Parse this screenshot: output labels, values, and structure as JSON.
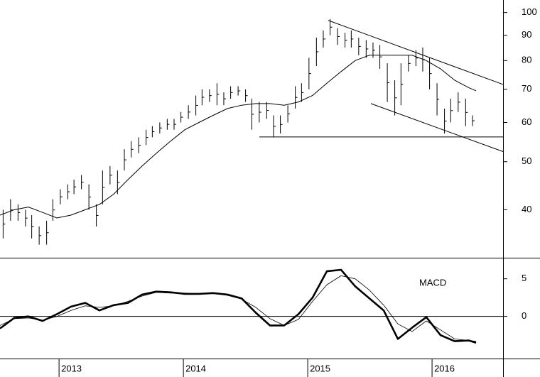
{
  "chart_data": [
    {
      "type": "ohlc",
      "log_scale": true,
      "xlim": [
        2012.525,
        2016.571
      ],
      "ylim": [
        32,
        106
      ],
      "yticks": [
        40,
        50,
        60,
        70,
        80,
        90,
        100
      ],
      "color": "#000000",
      "x": [
        2012.55,
        2012.61,
        2012.67,
        2012.73,
        2012.78,
        2012.84,
        2012.9,
        2012.95,
        2013.01,
        2013.07,
        2013.12,
        2013.18,
        2013.24,
        2013.3,
        2013.35,
        2013.41,
        2013.47,
        2013.525,
        2013.58,
        2013.64,
        2013.7,
        2013.75,
        2013.81,
        2013.87,
        2013.925,
        2013.98,
        2014.04,
        2014.1,
        2014.15,
        2014.21,
        2014.27,
        2014.325,
        2014.38,
        2014.44,
        2014.5,
        2014.55,
        2014.61,
        2014.67,
        2014.725,
        2014.78,
        2014.84,
        2014.9,
        2014.95,
        2015.01,
        2015.07,
        2015.125,
        2015.18,
        2015.24,
        2015.3,
        2015.35,
        2015.41,
        2015.47,
        2015.525,
        2015.58,
        2015.64,
        2015.7,
        2015.75,
        2015.81,
        2015.87,
        2015.925,
        2015.98,
        2016.04,
        2016.1,
        2016.15,
        2016.21,
        2016.27,
        2016.325
      ],
      "high": [
        40,
        42,
        41,
        40,
        39,
        37,
        38,
        42,
        44,
        45,
        46,
        47,
        45,
        41,
        48,
        49,
        48,
        53,
        55,
        56,
        58,
        59,
        60,
        61,
        61,
        63,
        65,
        68,
        70,
        70,
        72,
        69,
        71,
        71,
        70,
        67,
        66,
        66,
        62,
        62,
        65,
        71,
        72,
        81,
        89,
        92,
        97,
        93,
        91,
        92,
        89,
        88,
        87,
        86,
        79,
        73,
        79,
        82,
        84,
        85,
        81,
        72,
        64,
        67,
        69,
        67,
        62
      ],
      "low": [
        35,
        38,
        38,
        37,
        35,
        34,
        34,
        38,
        41,
        42,
        43,
        44,
        40,
        37,
        41,
        45,
        43,
        48,
        51,
        52,
        54,
        56,
        57,
        58,
        58,
        60,
        61,
        62,
        65,
        66,
        65,
        65,
        67,
        68,
        66,
        58,
        60,
        61,
        56,
        57,
        60,
        64,
        66,
        70,
        78,
        85,
        90,
        86,
        85,
        85,
        82,
        81,
        81,
        77,
        66,
        62,
        65,
        76,
        78,
        76,
        70,
        62,
        57,
        60,
        63,
        59,
        59
      ],
      "moving_average": {
        "color": "#000000",
        "x": [
          2012.525,
          2012.64,
          2012.754,
          2012.868,
          2012.982,
          2013.096,
          2013.211,
          2013.325,
          2013.439,
          2013.554,
          2013.668,
          2013.782,
          2013.896,
          2014.011,
          2014.125,
          2014.239,
          2014.354,
          2014.468,
          2014.582,
          2014.696,
          2014.811,
          2014.925,
          2015.039,
          2015.154,
          2015.268,
          2015.382,
          2015.496,
          2015.611,
          2015.725,
          2015.839,
          2015.954,
          2016.068,
          2016.182,
          2016.296,
          2016.354
        ],
        "values": [
          39,
          40,
          40.5,
          39.5,
          38.5,
          39,
          40,
          41,
          43,
          46,
          49,
          52,
          55,
          58,
          60,
          62,
          64,
          65,
          65.5,
          65.5,
          65,
          66,
          68,
          72,
          76,
          80,
          82,
          82,
          82,
          82,
          80,
          77,
          73,
          70.5,
          69.5
        ]
      },
      "trendlines": [
        {
          "x": [
            2015.165,
            2016.571
          ],
          "y": [
            96.4,
            71.6
          ]
        },
        {
          "x": [
            2015.508,
            2016.571
          ],
          "y": [
            65.5,
            52.4
          ]
        },
        {
          "x": [
            2014.611,
            2016.571
          ],
          "y": [
            56.1,
            56.1
          ]
        }
      ]
    },
    {
      "type": "line",
      "annotation": "MACD",
      "zero_line": true,
      "xlim": [
        2012.525,
        2016.571
      ],
      "xticks": [
        2013,
        2014,
        2015,
        2016
      ],
      "ylim": [
        -5.6,
        7.8
      ],
      "yticks": [
        0,
        5
      ],
      "x": [
        2012.525,
        2012.64,
        2012.754,
        2012.868,
        2012.982,
        2013.096,
        2013.211,
        2013.325,
        2013.439,
        2013.554,
        2013.668,
        2013.782,
        2013.896,
        2014.011,
        2014.125,
        2014.239,
        2014.354,
        2014.468,
        2014.582,
        2014.696,
        2014.811,
        2014.925,
        2015.039,
        2015.154,
        2015.268,
        2015.382,
        2015.496,
        2015.611,
        2015.725,
        2015.839,
        2015.954,
        2016.068,
        2016.182,
        2016.296,
        2016.354
      ],
      "series": [
        {
          "color": "#000000",
          "width": 2.6,
          "values": [
            -1.6,
            -0.2,
            0,
            -0.6,
            0.3,
            1.3,
            1.8,
            0.8,
            1.5,
            1.8,
            2.9,
            3.3,
            3.2,
            3,
            3,
            3.1,
            2.9,
            2.4,
            0.5,
            -1.2,
            -1.2,
            0.3,
            2.5,
            6,
            6.2,
            4,
            2.4,
            0.8,
            -3,
            -1.5,
            -0.1,
            -2.5,
            -3.3,
            -3.2,
            -3.5
          ]
        },
        {
          "color": "#000000",
          "width": 0.8,
          "values": [
            -1.2,
            -0.3,
            -0.2,
            -0.5,
            0,
            0.8,
            1.4,
            1.2,
            1.4,
            2,
            2.7,
            3.2,
            3.1,
            3.1,
            3,
            3.1,
            2.8,
            2.3,
            1.2,
            -0.3,
            -1.2,
            -0.4,
            2,
            4.2,
            5.4,
            5,
            3.5,
            1.5,
            -1,
            -2,
            -0.6,
            -1.8,
            -3,
            -3.2,
            -3.3
          ]
        }
      ]
    }
  ]
}
